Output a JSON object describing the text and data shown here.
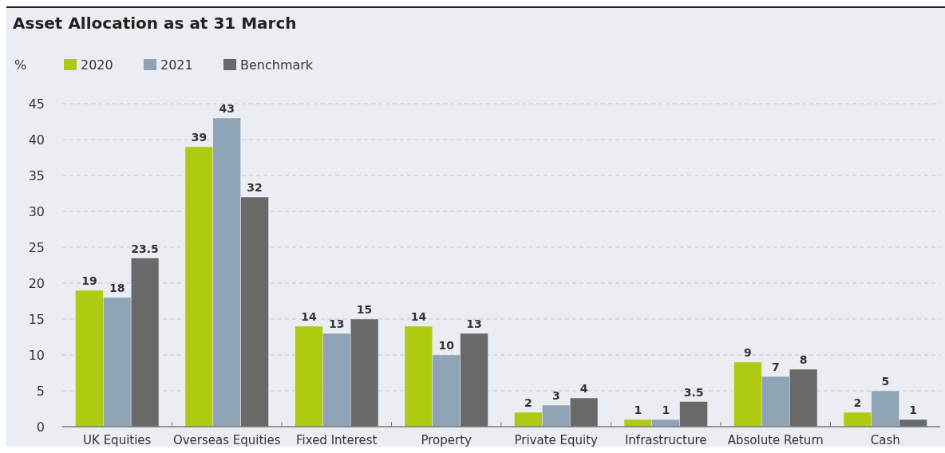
{
  "chart_data": {
    "type": "bar",
    "title": "Asset Allocation as at 31 March",
    "ylabel": "%",
    "categories": [
      "UK Equities",
      "Overseas Equities",
      "Fixed Interest",
      "Property",
      "Private Equity",
      "Infrastructure",
      "Absolute Return",
      "Cash"
    ],
    "series": [
      {
        "name": "2020",
        "color": "#b0c911",
        "values": [
          19,
          39,
          14,
          14,
          2,
          1,
          9,
          2
        ]
      },
      {
        "name": "2021",
        "color": "#8fa3b6",
        "values": [
          18,
          43,
          13,
          10,
          3,
          1,
          7,
          5
        ]
      },
      {
        "name": "Benchmark",
        "color": "#696969",
        "values": [
          23.5,
          32,
          15,
          13,
          4,
          3.5,
          8,
          1
        ]
      }
    ],
    "ylim": [
      0,
      45
    ],
    "yticks": [
      0,
      5,
      10,
      15,
      20,
      25,
      30,
      35,
      40,
      45
    ],
    "grid": "y",
    "legend": "top left",
    "data_labels": true
  }
}
